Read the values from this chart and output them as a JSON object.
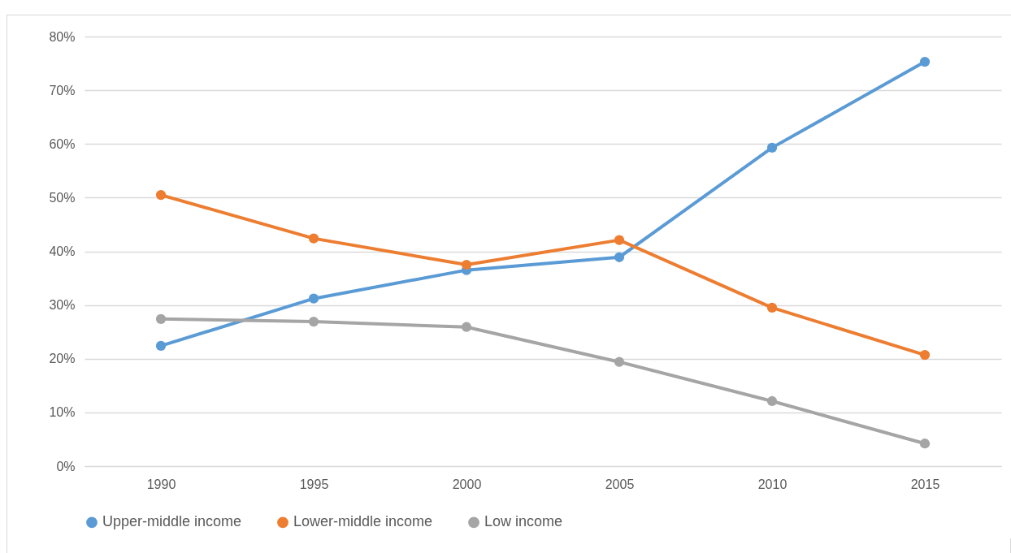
{
  "chart_data": {
    "type": "line",
    "categories": [
      "1990",
      "1995",
      "2000",
      "2005",
      "2010",
      "2015"
    ],
    "series": [
      {
        "name": "Upper-middle income",
        "color": "#5b9bd5",
        "values": [
          22.4,
          31.2,
          36.5,
          38.9,
          59.3,
          75.3
        ]
      },
      {
        "name": "Lower-middle income",
        "color": "#ed7d31",
        "values": [
          50.5,
          42.4,
          37.5,
          42.1,
          29.5,
          20.7
        ]
      },
      {
        "name": "Low income",
        "color": "#a5a5a5",
        "values": [
          27.4,
          26.9,
          25.9,
          19.4,
          12.1,
          4.2
        ]
      }
    ],
    "ylim": [
      0,
      80
    ],
    "yticks": [
      {
        "value": 0,
        "label": "0%"
      },
      {
        "value": 10,
        "label": "10%"
      },
      {
        "value": 20,
        "label": "20%"
      },
      {
        "value": 30,
        "label": "30%"
      },
      {
        "value": 40,
        "label": "40%"
      },
      {
        "value": 50,
        "label": "50%"
      },
      {
        "value": 60,
        "label": "60%"
      },
      {
        "value": 70,
        "label": "70%"
      },
      {
        "value": 80,
        "label": "80%"
      }
    ],
    "grid": "y",
    "legend": "bottom",
    "marker": "circle",
    "line_style": "solid"
  }
}
